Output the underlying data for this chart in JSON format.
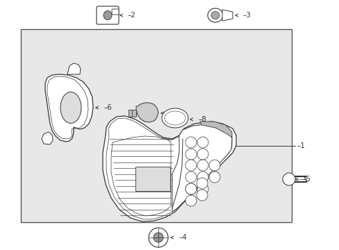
{
  "bg_color": "#ffffff",
  "box_bg": "#e8e8e8",
  "box_outline": "#555555",
  "line_color": "#333333",
  "label_color": "#333333",
  "figsize": [
    4.89,
    3.6
  ],
  "dpi": 100
}
